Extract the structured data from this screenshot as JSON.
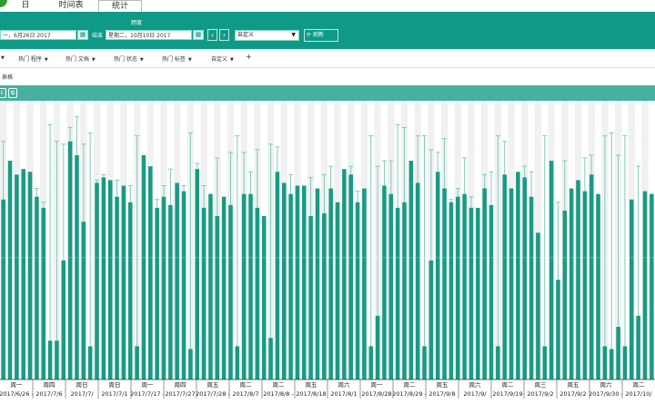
{
  "tabs": [
    {
      "label": "日"
    },
    {
      "label": "时间表"
    },
    {
      "label": "统计"
    }
  ],
  "toolbar": {
    "range_label": "跨度",
    "start_date": "一，6月26日 2017",
    "end_label": "结束",
    "end_date": "星期二，10月10日 2017",
    "range_select": "自定义",
    "refresh_label": "刷新"
  },
  "filters": [
    {
      "label": "热门 程序"
    },
    {
      "label": "热门 文档"
    },
    {
      "label": "热门 状态"
    },
    {
      "label": "热门 标签"
    },
    {
      "label": "自定义"
    }
  ],
  "add_label": "+",
  "view_label": "表格",
  "colors": {
    "accent": "#0f9a87",
    "bar": "#1a9a84",
    "whisker": "#7fcbb8"
  },
  "chart_data": {
    "type": "bar",
    "bars": [
      {
        "day": "2017/6/26",
        "value": 0.65,
        "top": 0.14
      },
      {
        "day": "2017/6/27",
        "value": 0.79,
        "top": 0.37
      },
      {
        "day": "2017/6/28",
        "value": 0.74,
        "top": 0.31
      },
      {
        "day": "2017/6/29",
        "value": 0.76,
        "top": 0.27
      },
      {
        "day": "2017/6/30",
        "value": 0.75,
        "top": 0.38
      },
      {
        "day": "2017/7/1",
        "value": 0.66,
        "top": 0.31
      },
      {
        "day": "2017/7/2",
        "value": 0.62,
        "top": 0.36
      },
      {
        "day": "2017/7/3",
        "value": 0.14,
        "top": 0.08
      },
      {
        "day": "2017/7/4",
        "value": 0.14,
        "top": 0.14
      },
      {
        "day": "2017/7/5",
        "value": 0.43,
        "top": 0.15
      },
      {
        "day": "2017/7/6",
        "value": 0.86,
        "top": 0.09
      },
      {
        "day": "2017/7/7",
        "value": 0.81,
        "top": 0.05
      },
      {
        "day": "2017/7/8",
        "value": 0.57,
        "top": 0.15
      },
      {
        "day": "2017/7/9",
        "value": 0.12,
        "top": 0.11
      },
      {
        "day": "2017/7/10",
        "value": 0.71,
        "top": 0.28
      },
      {
        "day": "2017/7/11",
        "value": 0.73,
        "top": 0.26
      },
      {
        "day": "2017/7/12",
        "value": 0.72,
        "top": 0.31
      },
      {
        "day": "2017/7/13",
        "value": 0.66,
        "top": 0.28
      },
      {
        "day": "2017/7/14",
        "value": 0.7,
        "top": 0.41
      },
      {
        "day": "2017/7/15",
        "value": 0.64,
        "top": 0.3
      },
      {
        "day": "2017/7/16",
        "value": 0.12,
        "top": 0.12
      },
      {
        "day": "2017/7/17",
        "value": 0.81,
        "top": 0.26
      },
      {
        "day": "2017/7/18",
        "value": 0.77,
        "top": 0.31
      },
      {
        "day": "2017/7/19",
        "value": 0.62,
        "top": 0.35
      },
      {
        "day": "2017/7/20",
        "value": 0.66,
        "top": 0.3
      },
      {
        "day": "2017/7/21",
        "value": 0.63,
        "top": 0.24
      },
      {
        "day": "2017/7/22",
        "value": 0.71,
        "top": 0.34
      },
      {
        "day": "2017/7/23",
        "value": 0.68,
        "top": 0.3
      },
      {
        "day": "2017/7/24",
        "value": 0.11,
        "top": 0.11
      },
      {
        "day": "2017/7/25",
        "value": 0.76,
        "top": 0.22
      },
      {
        "day": "2017/7/26",
        "value": 0.62,
        "top": 0.3
      },
      {
        "day": "2017/7/27",
        "value": 0.67,
        "top": 0.35
      },
      {
        "day": "2017/7/28",
        "value": 0.59,
        "top": 0.2
      },
      {
        "day": "2017/7/29",
        "value": 0.66,
        "top": 0.35
      },
      {
        "day": "2017/7/30",
        "value": 0.63,
        "top": 0.18
      },
      {
        "day": "2017/7/31",
        "value": 0.12,
        "top": 0.12
      },
      {
        "day": "2017/8/1",
        "value": 0.67,
        "top": 0.18
      },
      {
        "day": "2017/8/2",
        "value": 0.67,
        "top": 0.25
      },
      {
        "day": "2017/8/3",
        "value": 0.62,
        "top": 0.17
      },
      {
        "day": "2017/8/4",
        "value": 0.59,
        "top": 0.43
      },
      {
        "day": "2017/8/5",
        "value": 0.15,
        "top": 0.15
      },
      {
        "day": "2017/8/6",
        "value": 0.75,
        "top": 0.16
      },
      {
        "day": "2017/8/7",
        "value": 0.71,
        "top": 0.43
      },
      {
        "day": "2017/8/8",
        "value": 0.67,
        "top": 0.26
      },
      {
        "day": "2017/8/9",
        "value": 0.7,
        "top": 0.34
      },
      {
        "day": "2017/8/10",
        "value": 0.7,
        "top": 0.33
      },
      {
        "day": "2017/8/11",
        "value": 0.59,
        "top": 0.27
      },
      {
        "day": "2017/8/12",
        "value": 0.69,
        "top": 0.34
      },
      {
        "day": "2017/8/13",
        "value": 0.6,
        "top": 0.26
      },
      {
        "day": "2017/8/14",
        "value": 0.69,
        "top": 0.23
      },
      {
        "day": "2017/8/15",
        "value": 0.64,
        "top": 0.37
      },
      {
        "day": "2017/8/16",
        "value": 0.76,
        "top": 0.24
      },
      {
        "day": "2017/8/17",
        "value": 0.74,
        "top": 0.23
      },
      {
        "day": "2017/8/18",
        "value": 0.64,
        "top": 0.32
      },
      {
        "day": "2017/8/19",
        "value": 0.69,
        "top": 0.33
      },
      {
        "day": "2017/8/20",
        "value": 0.12,
        "top": 0.12
      },
      {
        "day": "2017/8/21",
        "value": 0.23,
        "top": 0.23
      },
      {
        "day": "2017/8/22",
        "value": 0.7,
        "top": 0.21
      },
      {
        "day": "2017/8/23",
        "value": 0.67,
        "top": 0.21
      },
      {
        "day": "2017/8/24",
        "value": 0.62,
        "top": 0.08
      },
      {
        "day": "2017/8/25",
        "value": 0.64,
        "top": 0.09
      },
      {
        "day": "2017/8/26",
        "value": 0.79,
        "top": 0.23
      },
      {
        "day": "2017/8/27",
        "value": 0.71,
        "top": 0.12
      },
      {
        "day": "2017/8/28",
        "value": 0.12,
        "top": 0.12
      },
      {
        "day": "2017/8/29",
        "value": 0.43,
        "top": 0.17
      },
      {
        "day": "2017/8/30",
        "value": 0.75,
        "top": 0.18
      },
      {
        "day": "2017/8/31",
        "value": 0.69,
        "top": 0.13
      },
      {
        "day": "2017/9/1",
        "value": 0.64,
        "top": 0.35
      },
      {
        "day": "2017/9/2",
        "value": 0.66,
        "top": 0.31
      },
      {
        "day": "2017/9/3",
        "value": 0.67,
        "top": 0.2
      },
      {
        "day": "2017/9/4",
        "value": 0.62,
        "top": 0.34
      },
      {
        "day": "2017/9/5",
        "value": 0.62,
        "top": 0.38
      },
      {
        "day": "2017/9/6",
        "value": 0.69,
        "top": 0.26
      },
      {
        "day": "2017/9/7",
        "value": 0.63,
        "top": 0.25
      },
      {
        "day": "2017/9/8",
        "value": 0.12,
        "top": 0.12
      },
      {
        "day": "2017/9/9",
        "value": 0.74,
        "top": 0.14
      },
      {
        "day": "2017/9/10",
        "value": 0.69,
        "top": 0.34
      },
      {
        "day": "2017/9/11",
        "value": 0.75,
        "top": 0.34
      },
      {
        "day": "2017/9/12",
        "value": 0.73,
        "top": 0.23
      },
      {
        "day": "2017/9/13",
        "value": 0.66,
        "top": 0.25
      },
      {
        "day": "2017/9/14",
        "value": 0.53,
        "top": 0.53
      },
      {
        "day": "2017/9/15",
        "value": 0.12,
        "top": 0.12
      },
      {
        "day": "2017/9/16",
        "value": 0.79,
        "top": 0.33
      },
      {
        "day": "2017/9/17",
        "value": 0.36,
        "top": 0.36
      },
      {
        "day": "2017/9/18",
        "value": 0.61,
        "top": 0.21
      },
      {
        "day": "2017/9/19",
        "value": 0.69,
        "top": 0.31
      },
      {
        "day": "2017/9/20",
        "value": 0.72,
        "top": 0.28
      },
      {
        "day": "2017/9/21",
        "value": 0.68,
        "top": 0.2
      },
      {
        "day": "2017/9/22",
        "value": 0.74,
        "top": 0.19
      },
      {
        "day": "2017/9/23",
        "value": 0.67,
        "top": 0.33
      },
      {
        "day": "2017/9/24",
        "value": 0.12,
        "top": 0.12
      },
      {
        "day": "2017/9/25",
        "value": 0.11,
        "top": 0.11
      },
      {
        "day": "2017/9/26",
        "value": 0.19,
        "top": 0.19
      },
      {
        "day": "2017/9/27",
        "value": 0.12,
        "top": 0.12
      },
      {
        "day": "2017/9/28",
        "value": 0.65,
        "top": 0.38
      },
      {
        "day": "2017/9/29",
        "value": 0.23,
        "top": 0.23
      },
      {
        "day": "2017/9/30",
        "value": 0.68,
        "top": 0.32
      },
      {
        "day": "2017/10/1",
        "value": 0.67,
        "top": 0.33
      }
    ],
    "tick_labels": [
      {
        "top": "周一",
        "bottom": "2017/6/26 -"
      },
      {
        "top": "周四",
        "bottom": "2017/7/6"
      },
      {
        "top": "周日",
        "bottom": "2017/7/"
      },
      {
        "top": "周日",
        "bottom": "2017/7/1"
      },
      {
        "top": "周一",
        "bottom": "2017/7/17 -"
      },
      {
        "top": "周四",
        "bottom": "2017/7/27"
      },
      {
        "top": "周五",
        "bottom": "2017/7/28 -"
      },
      {
        "top": "周二",
        "bottom": "2017/8/7"
      },
      {
        "top": "周二",
        "bottom": "2017/8/8 -"
      },
      {
        "top": "周五",
        "bottom": "2017/8/18"
      },
      {
        "top": "周六",
        "bottom": "2017/8/1"
      },
      {
        "top": "周一",
        "bottom": "2017/8/28"
      },
      {
        "top": "周二",
        "bottom": "2017/8/29 -"
      },
      {
        "top": "周五",
        "bottom": "2017/9/8"
      },
      {
        "top": "周六",
        "bottom": "2017/9/"
      },
      {
        "top": "周二",
        "bottom": "2017/9/19"
      },
      {
        "top": "周三",
        "bottom": "2017/9/2"
      },
      {
        "top": "周五",
        "bottom": "2017/9/2"
      },
      {
        "top": "周六",
        "bottom": "2017/9/30 -"
      },
      {
        "top": "周二",
        "bottom": "2017/10/"
      }
    ]
  }
}
